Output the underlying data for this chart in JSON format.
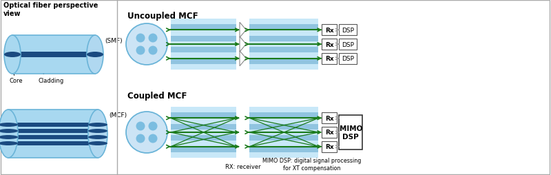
{
  "fig_width": 8.0,
  "fig_height": 2.55,
  "dpi": 100,
  "bg_color": "#ffffff",
  "light_blue": "#a8d8f0",
  "mid_blue": "#6ab4d8",
  "dark_blue": "#3a7abf",
  "fiber_light": "#c0e4f8",
  "fiber_mid": "#90c8e8",
  "fiber_dark": "#5090b8",
  "core_dark": "#1a4a80",
  "green_line": "#1a7a1a",
  "gray_tri": "#aaaaaa",
  "title": "Optical fiber perspective\nview",
  "smf_label": "(SMF)",
  "mcf_label": "(MCF)",
  "core_label": "Core",
  "cladding_label": "Cladding",
  "uncoupled_label": "Uncoupled MCF",
  "coupled_label": "Coupled MCF",
  "rx_label": "RX: receiver",
  "mimo_desc": "MIMO DSP: digital signal processing\nfor XT compensation"
}
